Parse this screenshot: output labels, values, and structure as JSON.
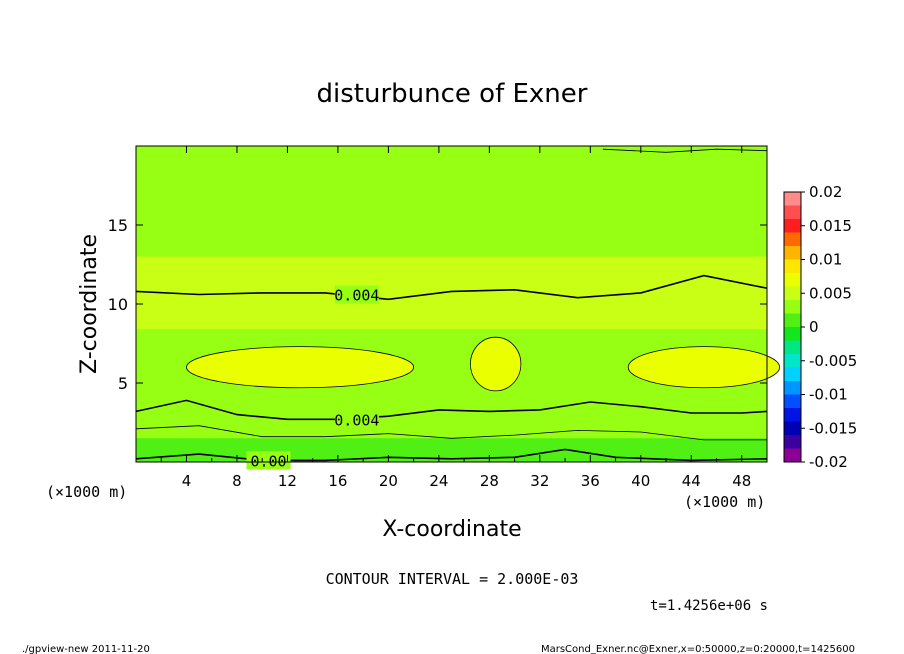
{
  "chart_data": {
    "type": "contour",
    "title": "disturbunce of Exner",
    "xlabel": "X-coordinate",
    "ylabel": "Z-coordinate",
    "x_unit": "(×1000 m)",
    "y_unit": "(×1000 m)",
    "xlim": [
      0,
      50
    ],
    "ylim": [
      0,
      20
    ],
    "x_ticks": [
      4,
      8,
      12,
      16,
      20,
      24,
      28,
      32,
      36,
      40,
      44,
      48
    ],
    "y_ticks": [
      5,
      10,
      15
    ],
    "contour_interval_text": "CONTOUR INTERVAL = 2.000E-03",
    "contour_labels": [
      "0.004",
      "0.004",
      "0.00"
    ],
    "colorbar": {
      "ticks": [
        "0.02",
        "0.015",
        "0.01",
        "0.005",
        "0",
        "-0.005",
        "-0.01",
        "-0.015",
        "-0.02"
      ],
      "colors": [
        "#ff8c8c",
        "#ff5050",
        "#ff1e1e",
        "#ff6a00",
        "#ffb400",
        "#ffe600",
        "#eaff00",
        "#c8ff14",
        "#96ff14",
        "#50f014",
        "#14e61e",
        "#00e682",
        "#00e6c8",
        "#00d2ff",
        "#0096ff",
        "#0050ff",
        "#0014e6",
        "#0000b4",
        "#3c00a0",
        "#8c0096"
      ]
    },
    "regions": [
      {
        "value_min": 0.006,
        "value_max": 0.008,
        "center": [
          13,
          6.0
        ],
        "half_width": 9,
        "half_height": 1.3
      },
      {
        "value_min": 0.006,
        "value_max": 0.008,
        "center": [
          28.5,
          6.2
        ],
        "half_width": 2,
        "half_height": 1.7
      },
      {
        "value_min": 0.006,
        "value_max": 0.008,
        "center": [
          45,
          6.0
        ],
        "half_width": 6,
        "half_height": 1.3
      }
    ]
  },
  "time_label": "t=1.4256e+06 s",
  "footer_left": "./gpview-new   2011-11-20",
  "footer_right": "MarsCond_Exner.nc@Exner,x=0:50000,z=0:20000,t=1425600"
}
